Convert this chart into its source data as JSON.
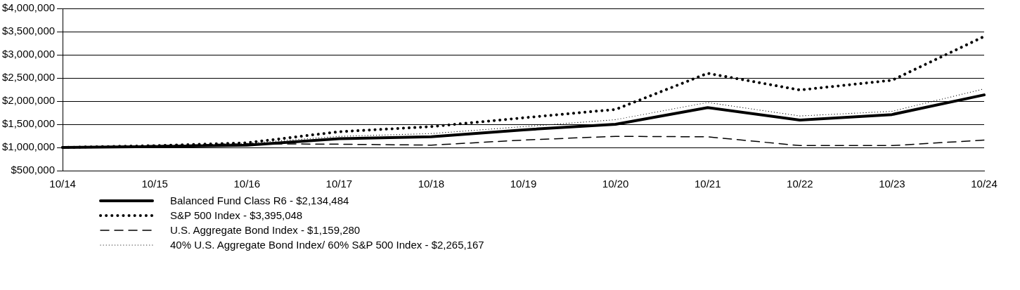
{
  "chart_data": {
    "type": "line",
    "categories": [
      "10/14",
      "10/15",
      "10/16",
      "10/17",
      "10/18",
      "10/19",
      "10/20",
      "10/21",
      "10/22",
      "10/23",
      "10/24"
    ],
    "series": [
      {
        "name": "Balanced Fund Class R6 - $2,134,484",
        "color": "#000000",
        "line_style": "solid",
        "values": [
          1000000,
          1020000,
          1050000,
          1190000,
          1230000,
          1380000,
          1500000,
          1860000,
          1590000,
          1710000,
          2134484
        ]
      },
      {
        "name": "S&P 500 Index - $3,395,048",
        "color": "#000000",
        "line_style": "dotted",
        "values": [
          1000000,
          1040000,
          1100000,
          1340000,
          1450000,
          1640000,
          1820000,
          2600000,
          2240000,
          2450000,
          3395048
        ]
      },
      {
        "name": "U.S. Aggregate Bond Index - $1,159,280",
        "color": "#000000",
        "line_style": "dashed",
        "values": [
          1000000,
          1040000,
          1080000,
          1070000,
          1050000,
          1160000,
          1240000,
          1230000,
          1040000,
          1040000,
          1159280
        ]
      },
      {
        "name": "40% U.S. Aggregate Bond Index/ 60% S&P 500 Index - $2,265,167",
        "color": "#000000",
        "line_style": "dotted",
        "values": [
          1000000,
          1030000,
          1090000,
          1240000,
          1300000,
          1450000,
          1600000,
          1970000,
          1680000,
          1780000,
          2265167
        ]
      }
    ],
    "ylim": [
      500000,
      4000000
    ],
    "yticks": [
      {
        "value": 500000,
        "label": "$500,000"
      },
      {
        "value": 1000000,
        "label": "$1,000,000"
      },
      {
        "value": 1500000,
        "label": "$1,500,000"
      },
      {
        "value": 2000000,
        "label": "$2,000,000"
      },
      {
        "value": 2500000,
        "label": "$2,500,000"
      },
      {
        "value": 3000000,
        "label": "$3,000,000"
      },
      {
        "value": 3500000,
        "label": "$3,500,000"
      },
      {
        "value": 4000000,
        "label": "$4,000,000"
      }
    ],
    "grid": "y",
    "legend": "bottom",
    "marker": "none"
  }
}
